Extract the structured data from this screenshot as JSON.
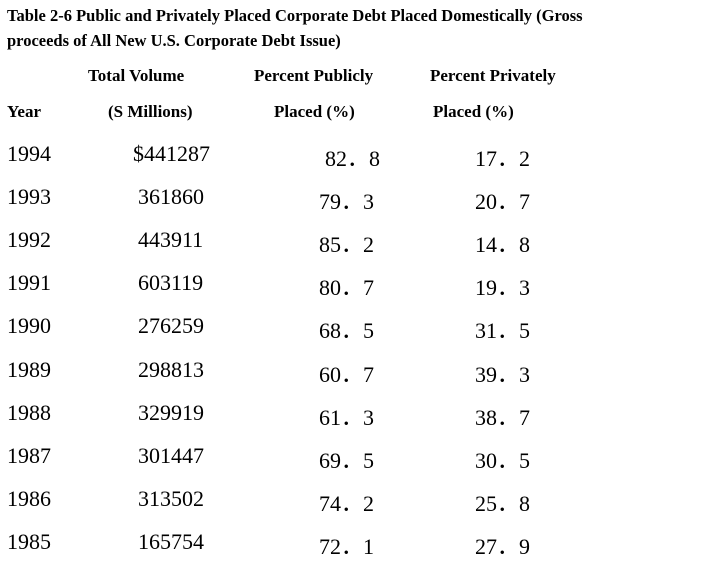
{
  "header": {
    "title_lines": [
      "Table 2-6 Public and Privately Placed Corporate Debt Placed Domestically  (Gross",
      "proceeds of All New U.S. Corporate Debt Issue)"
    ]
  },
  "table": {
    "columns": [
      {
        "line1": null,
        "line2": "Year"
      },
      {
        "line1": "Total Volume",
        "line2": "(S Millions)"
      },
      {
        "line1": "Percent Publicly",
        "line2": "Placed (%)"
      },
      {
        "line1": "Percent Privately",
        "line2": "Placed (%)"
      }
    ],
    "rows": [
      [
        "1994",
        "$441287",
        "82．8",
        "17．2"
      ],
      [
        "1993",
        "361860",
        "79．3",
        "20．7"
      ],
      [
        "1992",
        "443911",
        "85．2",
        "14．8"
      ],
      [
        "1991",
        "603119",
        "80．7",
        "19．3"
      ],
      [
        "1990",
        "276259",
        "68．5",
        "31．5"
      ],
      [
        "1989",
        "298813",
        "60．7",
        "39．3"
      ],
      [
        "1988",
        "329919",
        "61．3",
        "38．7"
      ],
      [
        "1987",
        "301447",
        "69．5",
        "30．5"
      ],
      [
        "1986",
        "313502",
        "74．2",
        "25．8"
      ],
      [
        "1985",
        "165754",
        "72．1",
        "27．9"
      ]
    ]
  }
}
